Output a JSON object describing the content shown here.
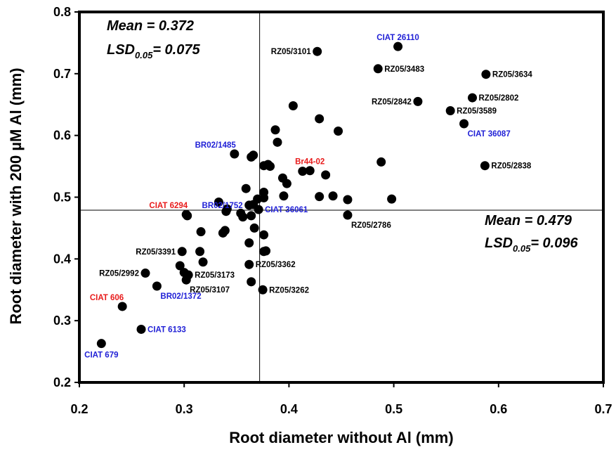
{
  "chart_data": {
    "type": "scatter",
    "xlabel": "Root diameter without Al (mm)",
    "ylabel": "Root diameter with 200 µM Al (mm)",
    "xlim": [
      0.2,
      0.7
    ],
    "ylim": [
      0.2,
      0.8
    ],
    "x_ticks": [
      "0.2",
      "0.3",
      "0.4",
      "0.5",
      "0.6",
      "0.7"
    ],
    "y_ticks": [
      "0.2",
      "0.3",
      "0.4",
      "0.5",
      "0.6",
      "0.7",
      "0.8"
    ],
    "grid": false,
    "reference_lines": {
      "x_mean": 0.372,
      "y_mean": 0.479
    },
    "stats_y": {
      "mean_label": "Mean = 0.372",
      "lsd_prefix": "LSD",
      "lsd_sub": "0.05",
      "lsd_value": "= 0.075"
    },
    "stats_x": {
      "mean_label": "Mean = 0.479",
      "lsd_prefix": "LSD",
      "lsd_sub": "0.05",
      "lsd_value": "= 0.096"
    },
    "colors": {
      "black": "#000000",
      "blue": "#1f1fd6",
      "red": "#e81b1b"
    },
    "points": [
      {
        "x": 0.221,
        "y": 0.263,
        "label": "CIAT 679",
        "color": "blue",
        "pos": "below-center"
      },
      {
        "x": 0.241,
        "y": 0.323,
        "label": "CIAT 606",
        "color": "red",
        "pos": "above-left"
      },
      {
        "x": 0.259,
        "y": 0.286,
        "label": "CIAT 6133",
        "color": "blue",
        "pos": "right"
      },
      {
        "x": 0.263,
        "y": 0.377,
        "label": "RZ05/2992",
        "color": "black",
        "pos": "left"
      },
      {
        "x": 0.274,
        "y": 0.356,
        "label": "BR02/1372",
        "color": "blue",
        "pos": "below-right"
      },
      {
        "x": 0.298,
        "y": 0.412,
        "label": "RZ05/3391",
        "color": "black",
        "pos": "left"
      },
      {
        "x": 0.302,
        "y": 0.366,
        "label": "RZ05/3107",
        "color": "black",
        "pos": "below-right"
      },
      {
        "x": 0.304,
        "y": 0.374,
        "label": "RZ05/3173",
        "color": "black",
        "pos": "right"
      },
      {
        "x": 0.302,
        "y": 0.472,
        "label": "CIAT 6294",
        "color": "red",
        "pos": "above-left"
      },
      {
        "x": 0.348,
        "y": 0.57,
        "label": "BR02/1485",
        "color": "blue",
        "pos": "above-left"
      },
      {
        "x": 0.362,
        "y": 0.487,
        "label": "BR02/1752",
        "color": "blue",
        "pos": "left"
      },
      {
        "x": 0.371,
        "y": 0.48,
        "label": "CIAT 36061",
        "color": "blue",
        "pos": "right"
      },
      {
        "x": 0.362,
        "y": 0.391,
        "label": "RZ05/3362",
        "color": "black",
        "pos": "right"
      },
      {
        "x": 0.375,
        "y": 0.35,
        "label": "RZ05/3262",
        "color": "black",
        "pos": "right"
      },
      {
        "x": 0.42,
        "y": 0.543,
        "label": "Br44-02",
        "color": "red",
        "pos": "above"
      },
      {
        "x": 0.427,
        "y": 0.736,
        "label": "RZ05/3101",
        "color": "black",
        "pos": "left"
      },
      {
        "x": 0.504,
        "y": 0.744,
        "label": "CIAT 26110",
        "color": "blue",
        "pos": "above"
      },
      {
        "x": 0.485,
        "y": 0.708,
        "label": "RZ05/3483",
        "color": "black",
        "pos": "right"
      },
      {
        "x": 0.523,
        "y": 0.655,
        "label": "RZ05/2842",
        "color": "black",
        "pos": "left"
      },
      {
        "x": 0.456,
        "y": 0.471,
        "label": "RZ05/2786",
        "color": "black",
        "pos": "below-right"
      },
      {
        "x": 0.588,
        "y": 0.699,
        "label": "RZ05/3634",
        "color": "black",
        "pos": "right"
      },
      {
        "x": 0.575,
        "y": 0.661,
        "label": "RZ05/2802",
        "color": "black",
        "pos": "right"
      },
      {
        "x": 0.554,
        "y": 0.64,
        "label": "RZ05/3589",
        "color": "black",
        "pos": "right"
      },
      {
        "x": 0.567,
        "y": 0.619,
        "label": "CIAT 36087",
        "color": "blue",
        "pos": "below-right"
      },
      {
        "x": 0.587,
        "y": 0.551,
        "label": "RZ05/2838",
        "color": "black",
        "pos": "right"
      },
      {
        "x": 0.404,
        "y": 0.648
      },
      {
        "x": 0.429,
        "y": 0.627
      },
      {
        "x": 0.447,
        "y": 0.607
      },
      {
        "x": 0.387,
        "y": 0.609
      },
      {
        "x": 0.389,
        "y": 0.589
      },
      {
        "x": 0.366,
        "y": 0.568
      },
      {
        "x": 0.364,
        "y": 0.565
      },
      {
        "x": 0.376,
        "y": 0.551
      },
      {
        "x": 0.38,
        "y": 0.553
      },
      {
        "x": 0.382,
        "y": 0.55
      },
      {
        "x": 0.413,
        "y": 0.542
      },
      {
        "x": 0.435,
        "y": 0.536
      },
      {
        "x": 0.488,
        "y": 0.557
      },
      {
        "x": 0.394,
        "y": 0.531
      },
      {
        "x": 0.398,
        "y": 0.522
      },
      {
        "x": 0.359,
        "y": 0.514
      },
      {
        "x": 0.376,
        "y": 0.508
      },
      {
        "x": 0.376,
        "y": 0.499
      },
      {
        "x": 0.366,
        "y": 0.488
      },
      {
        "x": 0.37,
        "y": 0.497
      },
      {
        "x": 0.395,
        "y": 0.502
      },
      {
        "x": 0.429,
        "y": 0.501
      },
      {
        "x": 0.442,
        "y": 0.502
      },
      {
        "x": 0.456,
        "y": 0.496
      },
      {
        "x": 0.498,
        "y": 0.497
      },
      {
        "x": 0.333,
        "y": 0.492
      },
      {
        "x": 0.34,
        "y": 0.477
      },
      {
        "x": 0.341,
        "y": 0.481
      },
      {
        "x": 0.354,
        "y": 0.474
      },
      {
        "x": 0.356,
        "y": 0.468
      },
      {
        "x": 0.364,
        "y": 0.47
      },
      {
        "x": 0.367,
        "y": 0.45
      },
      {
        "x": 0.303,
        "y": 0.47
      },
      {
        "x": 0.316,
        "y": 0.444
      },
      {
        "x": 0.337,
        "y": 0.442
      },
      {
        "x": 0.339,
        "y": 0.446
      },
      {
        "x": 0.376,
        "y": 0.439
      },
      {
        "x": 0.362,
        "y": 0.426
      },
      {
        "x": 0.376,
        "y": 0.412
      },
      {
        "x": 0.378,
        "y": 0.413
      },
      {
        "x": 0.315,
        "y": 0.412
      },
      {
        "x": 0.318,
        "y": 0.395
      },
      {
        "x": 0.296,
        "y": 0.389
      },
      {
        "x": 0.3,
        "y": 0.378
      },
      {
        "x": 0.364,
        "y": 0.363
      }
    ]
  }
}
